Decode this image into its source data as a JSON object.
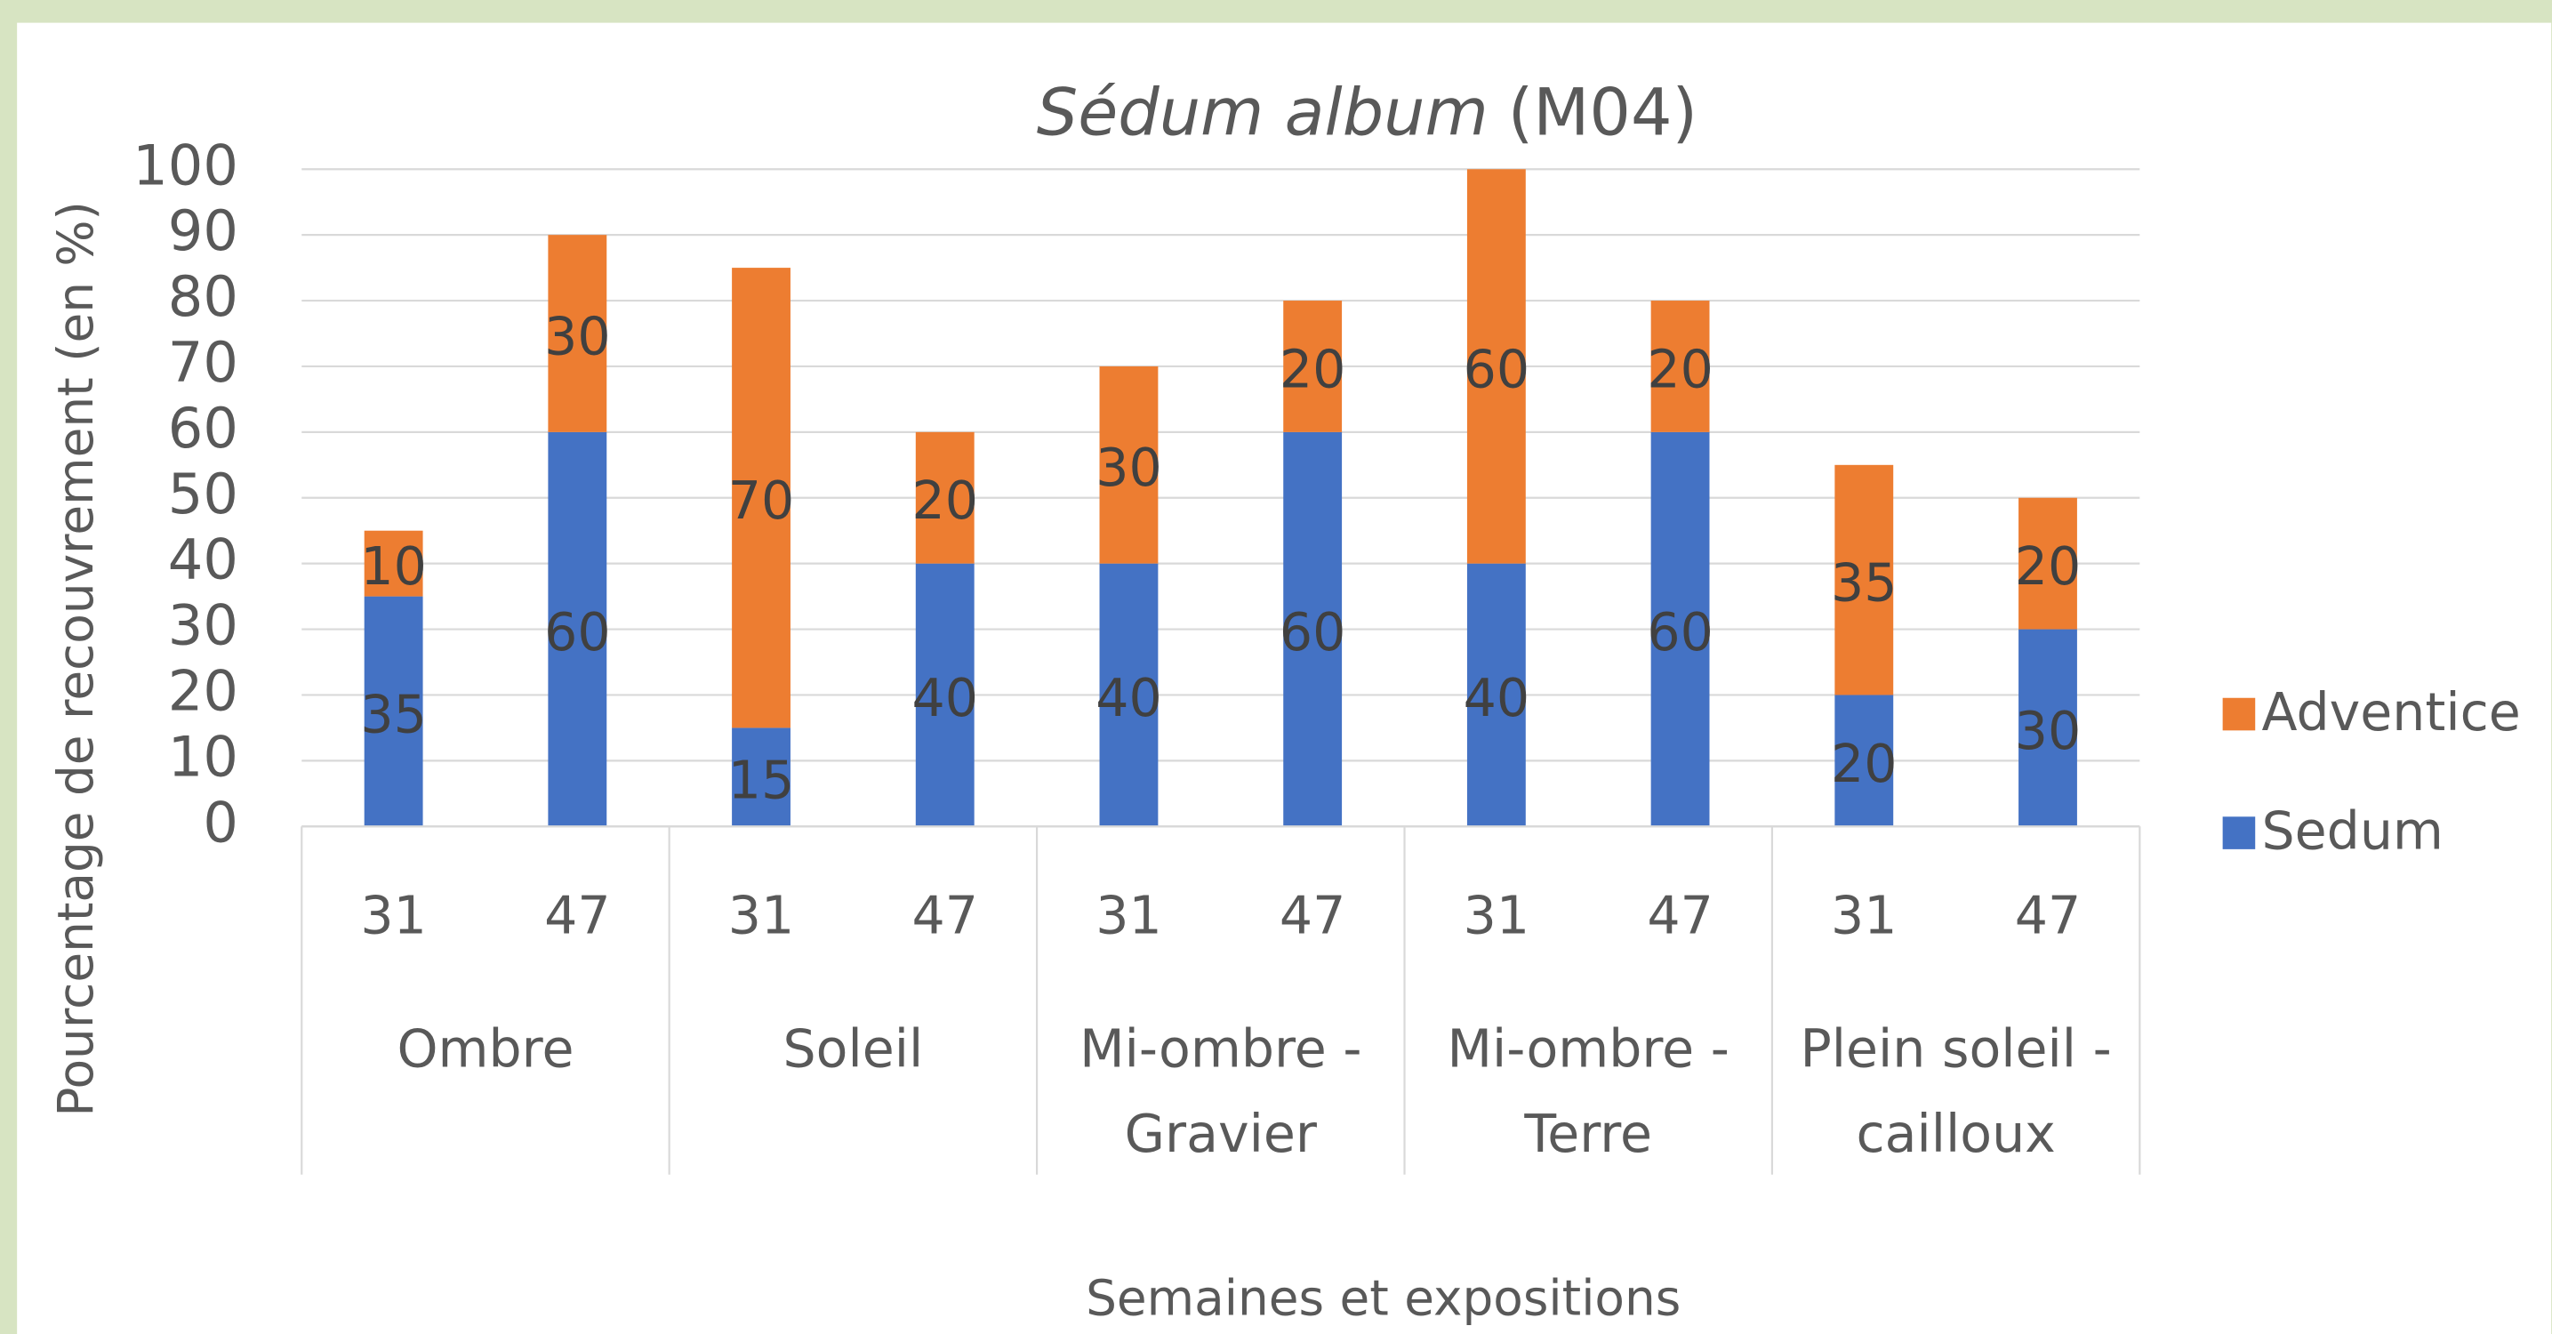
{
  "chart_data": {
    "type": "stacked_bar",
    "title_italic": "Sédum album",
    "title_suffix": "(M04)",
    "ylabel": "Pourcentage de recouvrement (en %)",
    "xlabel": "Semaines et expositions",
    "categories": [
      "31",
      "47",
      "31",
      "47",
      "31",
      "47",
      "31",
      "47",
      "31",
      "47"
    ],
    "groups": [
      [
        "Ombre"
      ],
      [
        "Soleil"
      ],
      [
        "Mi-ombre -",
        "Gravier"
      ],
      [
        "Mi-ombre -",
        "Terre"
      ],
      [
        "Plein soleil -",
        "cailloux"
      ]
    ],
    "series": [
      {
        "name": "Sedum",
        "color": "#4472c4",
        "values": [
          35,
          60,
          15,
          40,
          40,
          60,
          40,
          60,
          20,
          30
        ]
      },
      {
        "name": "Adventice",
        "color": "#ed7d31",
        "values": [
          10,
          30,
          70,
          20,
          30,
          20,
          60,
          20,
          35,
          20
        ]
      }
    ],
    "ylim": [
      0,
      100
    ],
    "yticks": [
      0,
      10,
      20,
      30,
      40,
      50,
      60,
      70,
      80,
      90,
      100
    ],
    "grid": true,
    "legend": "right"
  }
}
